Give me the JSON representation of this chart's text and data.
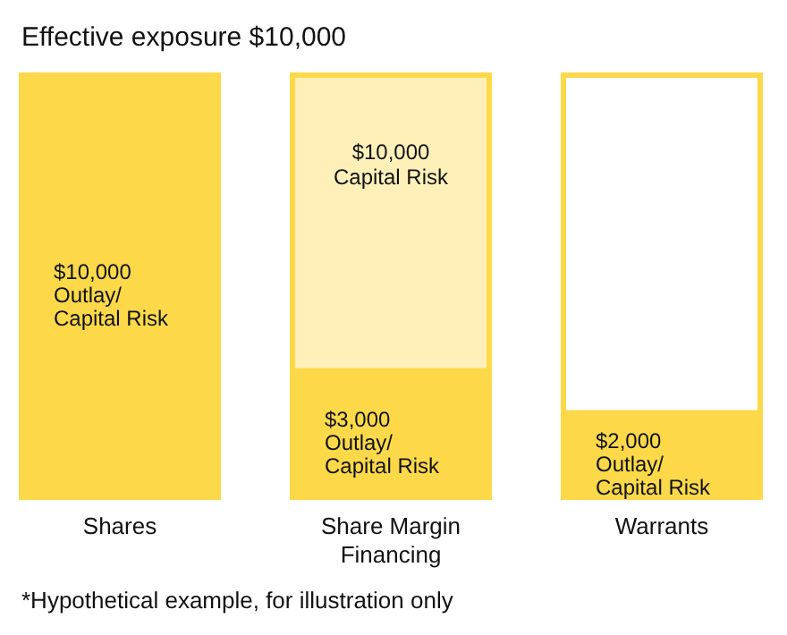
{
  "chart_data": {
    "type": "bar",
    "title": "Effective exposure $10,000",
    "categories": [
      "Shares",
      "Share Margin Financing",
      "Warrants"
    ],
    "stacked": true,
    "series": [
      {
        "color": "#fdd94a",
        "colors": [
          "#fdd94a",
          "#fdd94a",
          "#fdd94a"
        ],
        "values": [
          10000,
          3000,
          2000
        ],
        "value_labels": [
          "$10,000\nOutlay/\nCapital Risk",
          "$3,000\nOutlay/\nCapital Risk",
          "$2,000\nOutlay/\nCapital Risk"
        ]
      },
      {
        "color": "#fef0b8",
        "colors": [
          null,
          null,
          "#ffffff"
        ],
        "values": [
          null,
          7000,
          8000
        ]
      }
    ],
    "annotations": [
      {
        "text": "$10,000\nCapital Risk",
        "x": "Share Margin Financing",
        "y": 10000
      },
      "*Hypothetical example, for illustration only"
    ]
  }
}
